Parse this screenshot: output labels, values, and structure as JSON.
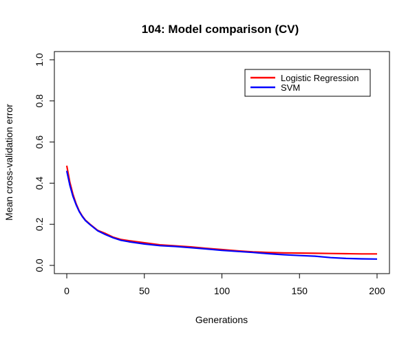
{
  "chart_data": {
    "type": "line",
    "title": "104: Model comparison (CV)",
    "xlabel": "Generations",
    "ylabel": "Mean cross-validation error",
    "xlim": [
      -8,
      208
    ],
    "ylim": [
      -0.04,
      1.04
    ],
    "x_ticks": [
      0,
      50,
      100,
      150,
      200
    ],
    "y_ticks": [
      0.0,
      0.2,
      0.4,
      0.6,
      0.8,
      1.0
    ],
    "x_tick_labels": [
      "0",
      "50",
      "100",
      "150",
      "200"
    ],
    "y_tick_labels": [
      "0.0",
      "0.2",
      "0.4",
      "0.6",
      "0.8",
      "1.0"
    ],
    "grid": false,
    "legend_position": "top-right",
    "series": [
      {
        "name": "Logistic Regression",
        "color": "#ff0000",
        "x": [
          0,
          2,
          4,
          6,
          8,
          10,
          12,
          15,
          18,
          20,
          25,
          30,
          35,
          40,
          50,
          60,
          70,
          80,
          90,
          100,
          110,
          120,
          130,
          140,
          150,
          160,
          170,
          180,
          190,
          200
        ],
        "values": [
          0.485,
          0.405,
          0.345,
          0.3,
          0.265,
          0.24,
          0.22,
          0.2,
          0.182,
          0.17,
          0.155,
          0.137,
          0.126,
          0.12,
          0.11,
          0.1,
          0.095,
          0.09,
          0.083,
          0.077,
          0.071,
          0.066,
          0.063,
          0.061,
          0.06,
          0.059,
          0.058,
          0.057,
          0.056,
          0.056
        ]
      },
      {
        "name": "SVM",
        "color": "#0000ff",
        "x": [
          0,
          2,
          4,
          6,
          8,
          10,
          12,
          15,
          18,
          20,
          25,
          30,
          35,
          40,
          50,
          60,
          70,
          80,
          90,
          100,
          110,
          120,
          130,
          140,
          150,
          160,
          170,
          180,
          190,
          200
        ],
        "values": [
          0.46,
          0.39,
          0.335,
          0.295,
          0.262,
          0.238,
          0.218,
          0.198,
          0.18,
          0.168,
          0.15,
          0.134,
          0.122,
          0.115,
          0.104,
          0.096,
          0.092,
          0.086,
          0.08,
          0.073,
          0.068,
          0.063,
          0.057,
          0.052,
          0.048,
          0.045,
          0.038,
          0.034,
          0.032,
          0.031
        ]
      }
    ]
  }
}
